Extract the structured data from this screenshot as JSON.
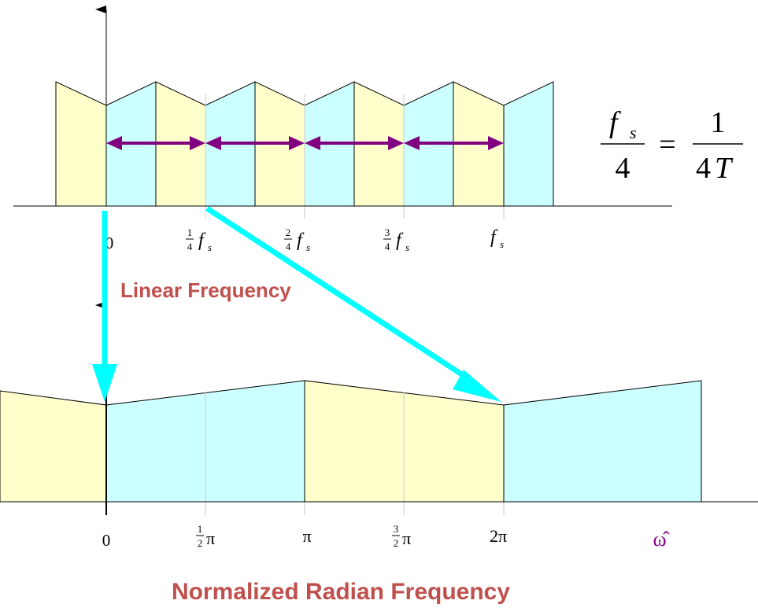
{
  "colors": {
    "yellow_band": "#ffffcc",
    "cyan_band": "#ccffff",
    "cyan_arrow": "#00ffff",
    "purple_arrow": "#800080",
    "caption_red": "#c0504d",
    "omega_purple": "#800080"
  },
  "top_axis": {
    "tick_labels": {
      "zero": "0",
      "quarter": {
        "num": "1",
        "den": "4",
        "sym": "f",
        "sub": "s"
      },
      "half": {
        "num": "2",
        "den": "4",
        "sym": "f",
        "sub": "s"
      },
      "three_quarter": {
        "num": "3",
        "den": "4",
        "sym": "f",
        "sub": "s"
      },
      "fs": {
        "sym": "f",
        "sub": "s"
      }
    },
    "caption": "Linear Frequency"
  },
  "equation": {
    "lhs_num": "f",
    "lhs_sub": "s",
    "lhs_den": "4",
    "eq": "=",
    "rhs_num": "1",
    "rhs_den_a": "4",
    "rhs_den_b": "T"
  },
  "bottom_axis": {
    "tick_labels": {
      "zero": "0",
      "half_pi": {
        "num": "1",
        "den": "2",
        "sym": "π"
      },
      "pi": "π",
      "three_half_pi": {
        "num": "3",
        "den": "2",
        "sym": "π"
      },
      "two_pi": "2π"
    },
    "omega": "ω̂",
    "caption": "Normalized Radian Frequency"
  }
}
